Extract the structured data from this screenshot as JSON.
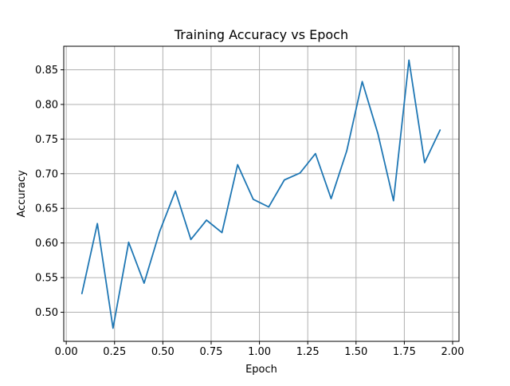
{
  "chart_data": {
    "type": "line",
    "title": "Training Accuracy vs Epoch",
    "xlabel": "Epoch",
    "ylabel": "Accuracy",
    "xlim": [
      -0.013,
      2.033
    ],
    "ylim": [
      0.458,
      0.884
    ],
    "xticks": [
      0.0,
      0.25,
      0.5,
      0.75,
      1.0,
      1.25,
      1.5,
      1.75,
      2.0
    ],
    "xtick_labels": [
      "0.00",
      "0.25",
      "0.50",
      "0.75",
      "1.00",
      "1.25",
      "1.50",
      "1.75",
      "2.00"
    ],
    "yticks": [
      0.5,
      0.55,
      0.6,
      0.65,
      0.7,
      0.75,
      0.8,
      0.85
    ],
    "ytick_labels": [
      "0.50",
      "0.55",
      "0.60",
      "0.65",
      "0.70",
      "0.75",
      "0.80",
      "0.85"
    ],
    "grid": true,
    "series": [
      {
        "color": "#1f77b4",
        "x": [
          0.081,
          0.161,
          0.242,
          0.323,
          0.403,
          0.484,
          0.565,
          0.645,
          0.726,
          0.806,
          0.887,
          0.968,
          1.048,
          1.129,
          1.21,
          1.29,
          1.371,
          1.452,
          1.532,
          1.613,
          1.694,
          1.774,
          1.855,
          1.935
        ],
        "y": [
          0.527,
          0.628,
          0.477,
          0.601,
          0.542,
          0.617,
          0.675,
          0.605,
          0.633,
          0.615,
          0.713,
          0.663,
          0.652,
          0.691,
          0.701,
          0.729,
          0.664,
          0.733,
          0.833,
          0.758,
          0.661,
          0.864,
          0.716,
          0.763
        ]
      }
    ]
  }
}
